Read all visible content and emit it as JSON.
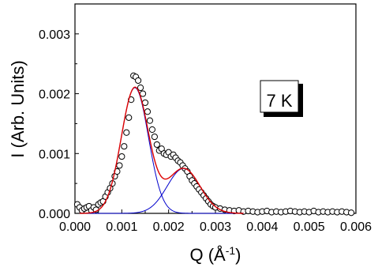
{
  "chart_data": {
    "type": "scatter",
    "xlabel": "Q (Å⁻¹)",
    "ylabel": "I (Arb. Units)",
    "xlim": [
      0.0,
      0.006
    ],
    "ylim": [
      0.0,
      0.0035
    ],
    "x_ticks": [
      "0.000",
      "0.001",
      "0.002",
      "0.003",
      "0.004",
      "0.005",
      "0.006"
    ],
    "y_ticks": [
      "0.000",
      "0.001",
      "0.002",
      "0.003"
    ],
    "grid": false,
    "annotation": "7 K",
    "series": [
      {
        "kind": "points",
        "marker": "open-circle",
        "color": "#000000",
        "x": [
          5e-05,
          0.0001,
          0.00015,
          0.0002,
          0.00025,
          0.0003,
          0.00035,
          0.0004,
          0.00045,
          0.0005,
          0.00055,
          0.0006,
          0.00065,
          0.0007,
          0.00075,
          0.0008,
          0.00085,
          0.0009,
          0.00095,
          0.001,
          0.00105,
          0.0011,
          0.00115,
          0.0012,
          0.00125,
          0.0013,
          0.00135,
          0.0014,
          0.00145,
          0.0015,
          0.00155,
          0.0016,
          0.00165,
          0.0017,
          0.00175,
          0.0018,
          0.00185,
          0.0019,
          0.00195,
          0.002,
          0.00205,
          0.0021,
          0.00215,
          0.0022,
          0.00225,
          0.0023,
          0.00235,
          0.0024,
          0.00245,
          0.0025,
          0.00255,
          0.0026,
          0.00265,
          0.0027,
          0.00275,
          0.0028,
          0.00285,
          0.0029,
          0.00295,
          0.003,
          0.0031,
          0.0032,
          0.0033,
          0.0034,
          0.0035,
          0.0036,
          0.0037,
          0.0038,
          0.0039,
          0.004,
          0.0041,
          0.0042,
          0.0043,
          0.0044,
          0.0045,
          0.0046,
          0.0047,
          0.0048,
          0.0049,
          0.005,
          0.0051,
          0.0052,
          0.0053,
          0.0054,
          0.0055,
          0.0056,
          0.0057,
          0.0058,
          0.0059
        ],
        "y": [
          0.00015,
          0.0001,
          5e-05,
          8e-05,
          0.0001,
          0.00012,
          5e-05,
          0.0001,
          6e-05,
          0.00015,
          0.00018,
          0.0002,
          0.00028,
          0.00035,
          0.00042,
          0.0005,
          0.00062,
          0.0007,
          0.0008,
          0.00095,
          0.00112,
          0.00135,
          0.0016,
          0.0019,
          0.0023,
          0.00228,
          0.00222,
          0.0021,
          0.002,
          0.00185,
          0.0017,
          0.00155,
          0.0014,
          0.00128,
          0.00115,
          0.00105,
          0.00108,
          0.001,
          0.00098,
          0.00102,
          0.00095,
          0.00098,
          0.00093,
          0.00088,
          0.00085,
          0.0008,
          0.00075,
          0.0007,
          0.00062,
          0.00055,
          0.0005,
          0.00045,
          0.0004,
          0.00035,
          0.0003,
          0.00025,
          0.0002,
          0.00015,
          0.00012,
          0.0001,
          8e-05,
          6e-05,
          5e-05,
          4e-05,
          5e-05,
          3e-05,
          4e-05,
          3e-05,
          2e-05,
          3e-05,
          4e-05,
          2e-05,
          3e-05,
          2e-05,
          3e-05,
          4e-05,
          3e-05,
          2e-05,
          3e-05,
          2e-05,
          4e-05,
          2e-05,
          3e-05,
          2e-05,
          3e-05,
          2e-05,
          3e-05,
          2e-05,
          1e-05
        ]
      },
      {
        "kind": "gaussian",
        "color": "#0000cc",
        "center": 0.00128,
        "amplitude": 0.0021,
        "sigma": 0.00029
      },
      {
        "kind": "gaussian",
        "color": "#0000cc",
        "center": 0.00232,
        "amplitude": 0.00075,
        "sigma": 0.00035
      },
      {
        "kind": "sum",
        "color": "#dd0000"
      }
    ]
  }
}
